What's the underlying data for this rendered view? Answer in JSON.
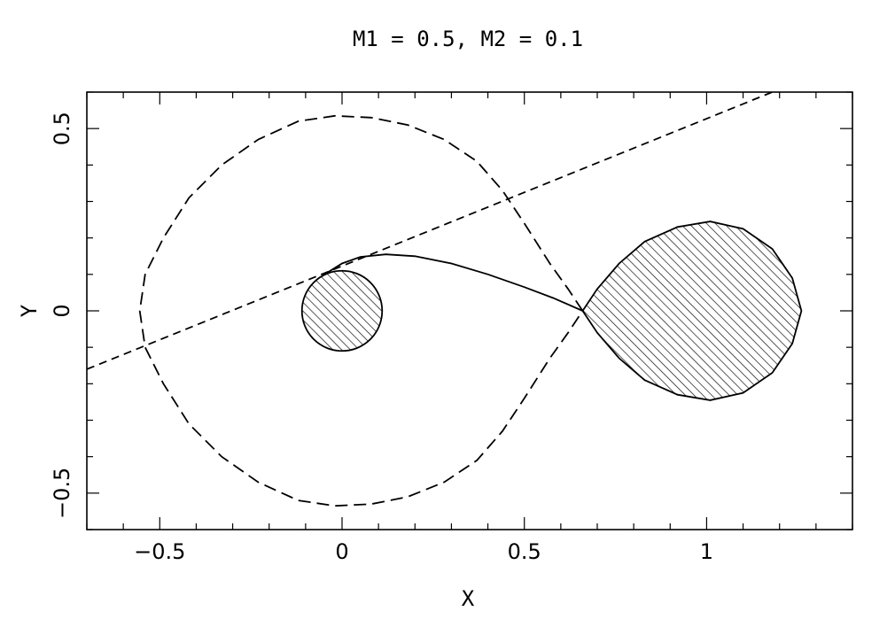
{
  "chart_data": {
    "type": "line",
    "title": "M1 = 0.5, M2 = 0.1",
    "xlabel": "X",
    "ylabel": "Y",
    "xlim": [
      -0.7,
      1.4
    ],
    "ylim": [
      -0.6,
      0.6
    ],
    "grid": false,
    "x_ticks": [
      {
        "value": -0.5,
        "label": "−0.5"
      },
      {
        "value": 0,
        "label": "0"
      },
      {
        "value": 0.5,
        "label": "0.5"
      },
      {
        "value": 1,
        "label": "1"
      }
    ],
    "y_ticks": [
      {
        "value": -0.5,
        "label": "−0.5"
      },
      {
        "value": 0,
        "label": "0"
      },
      {
        "value": 0.5,
        "label": "0.5"
      }
    ],
    "series": [
      {
        "style": "dashed",
        "points": [
          [
            0.66,
            0.0
          ],
          [
            0.62,
            0.06
          ],
          [
            0.57,
            0.13
          ],
          [
            0.5,
            0.24
          ],
          [
            0.44,
            0.33
          ],
          [
            0.37,
            0.41
          ],
          [
            0.28,
            0.47
          ],
          [
            0.18,
            0.51
          ],
          [
            0.08,
            0.53
          ],
          [
            -0.02,
            0.535
          ],
          [
            -0.12,
            0.52
          ],
          [
            -0.23,
            0.47
          ],
          [
            -0.33,
            0.4
          ],
          [
            -0.42,
            0.31
          ],
          [
            -0.49,
            0.2
          ],
          [
            -0.54,
            0.1
          ],
          [
            -0.555,
            0.0
          ],
          [
            -0.54,
            -0.1
          ],
          [
            -0.49,
            -0.2
          ],
          [
            -0.42,
            -0.31
          ],
          [
            -0.33,
            -0.4
          ],
          [
            -0.23,
            -0.47
          ],
          [
            -0.12,
            -0.52
          ],
          [
            -0.02,
            -0.535
          ],
          [
            0.08,
            -0.53
          ],
          [
            0.18,
            -0.51
          ],
          [
            0.28,
            -0.47
          ],
          [
            0.37,
            -0.41
          ],
          [
            0.44,
            -0.33
          ],
          [
            0.5,
            -0.24
          ],
          [
            0.57,
            -0.13
          ],
          [
            0.62,
            -0.06
          ],
          [
            0.66,
            0.0
          ]
        ]
      },
      {
        "style": "dashed-fine",
        "points": [
          [
            -0.7,
            -0.16
          ],
          [
            1.18,
            0.6
          ]
        ]
      },
      {
        "style": "solid",
        "points": [
          [
            -0.04,
            0.105
          ],
          [
            0.0,
            0.13
          ],
          [
            0.05,
            0.148
          ],
          [
            0.12,
            0.155
          ],
          [
            0.2,
            0.15
          ],
          [
            0.3,
            0.13
          ],
          [
            0.4,
            0.1
          ],
          [
            0.5,
            0.065
          ],
          [
            0.58,
            0.035
          ],
          [
            0.66,
            0.0
          ]
        ]
      },
      {
        "style": "hatched-filled",
        "shape": "circle",
        "center": [
          0.0,
          0.0
        ],
        "radius": 0.11
      },
      {
        "style": "hatched-filled",
        "points": [
          [
            0.66,
            0.0
          ],
          [
            0.7,
            0.06
          ],
          [
            0.76,
            0.13
          ],
          [
            0.83,
            0.19
          ],
          [
            0.92,
            0.23
          ],
          [
            1.01,
            0.245
          ],
          [
            1.1,
            0.225
          ],
          [
            1.18,
            0.17
          ],
          [
            1.235,
            0.09
          ],
          [
            1.26,
            0.0
          ],
          [
            1.235,
            -0.09
          ],
          [
            1.18,
            -0.17
          ],
          [
            1.1,
            -0.225
          ],
          [
            1.01,
            -0.245
          ],
          [
            0.92,
            -0.23
          ],
          [
            0.83,
            -0.19
          ],
          [
            0.76,
            -0.13
          ],
          [
            0.7,
            -0.06
          ],
          [
            0.66,
            0.0
          ]
        ]
      }
    ]
  }
}
